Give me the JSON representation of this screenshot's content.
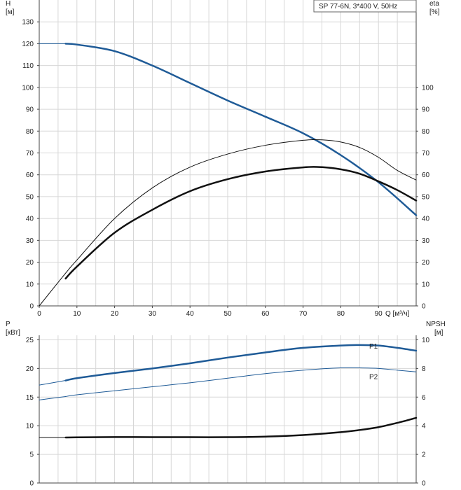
{
  "info_box": "SP 77-6N, 3*400 V, 50Hz",
  "colors": {
    "blue": "#1f5b97",
    "black": "#111111",
    "grid": "#d7d7d7"
  },
  "chart_data": [
    {
      "type": "line",
      "title": "",
      "ylabel_left": [
        "H",
        "[м]"
      ],
      "ylabel_right": [
        "eta",
        "[%]"
      ],
      "xlabel": "Q [м³/ч]",
      "xlim": [
        0,
        100
      ],
      "ylim": [
        0,
        140
      ],
      "x_ticks": [
        0,
        10,
        20,
        30,
        40,
        50,
        60,
        70,
        80,
        90
      ],
      "y_left_ticks": [
        0,
        10,
        20,
        30,
        40,
        50,
        60,
        70,
        80,
        90,
        100,
        110,
        120,
        130
      ],
      "y_right_ticks": [
        0,
        10,
        20,
        30,
        40,
        50,
        60,
        70,
        80,
        90,
        100
      ],
      "grid": true,
      "series": [
        {
          "key": "H_ext",
          "axis": "left",
          "color": "#1f5b97",
          "width": 1,
          "x": [
            0,
            7
          ],
          "y": [
            120,
            120
          ]
        },
        {
          "key": "H",
          "axis": "left",
          "color": "#1f5b97",
          "width": 2.5,
          "x": [
            7,
            10,
            20,
            30,
            40,
            50,
            60,
            70,
            80,
            90,
            100
          ],
          "y": [
            120,
            119.6,
            116.6,
            110,
            102,
            94,
            86.6,
            79,
            69,
            56.6,
            41.5
          ]
        },
        {
          "key": "eta_thin",
          "axis": "right",
          "color": "#111111",
          "width": 1,
          "x": [
            0,
            7,
            10,
            20,
            30,
            40,
            50,
            60,
            70,
            75,
            80,
            85,
            90,
            95,
            100
          ],
          "y": [
            0,
            15,
            21,
            40,
            54,
            63.5,
            69.5,
            73.5,
            75.8,
            76,
            75,
            72.5,
            68,
            62,
            57.6
          ]
        },
        {
          "key": "eta_thick",
          "axis": "right",
          "color": "#111111",
          "width": 2.5,
          "x": [
            7,
            10,
            20,
            30,
            40,
            50,
            60,
            70,
            75,
            80,
            85,
            90,
            95,
            100
          ],
          "y": [
            12.5,
            18,
            33.5,
            44,
            52.5,
            58,
            61.5,
            63.4,
            63.5,
            62.5,
            60.5,
            57,
            53,
            48.2
          ]
        }
      ]
    },
    {
      "type": "line",
      "title": "",
      "ylabel_left": [
        "P",
        "[кВт]"
      ],
      "ylabel_right": [
        "NPSH",
        "[м]"
      ],
      "xlim": [
        0,
        100
      ],
      "ylim": [
        0,
        27.5
      ],
      "y_left_ticks": [
        0,
        5,
        10,
        15,
        20,
        25
      ],
      "y_right_ticks": [
        0,
        2,
        4,
        6,
        8,
        10
      ],
      "grid": true,
      "series": [
        {
          "key": "P1_ext",
          "axis": "left",
          "color": "#1f5b97",
          "width": 1,
          "x": [
            0,
            7
          ],
          "y": [
            17.1,
            17.9
          ]
        },
        {
          "key": "P1",
          "name": "P1",
          "axis": "left",
          "color": "#1f5b97",
          "width": 2.5,
          "x": [
            7,
            10,
            20,
            30,
            40,
            50,
            60,
            70,
            80,
            85,
            90,
            95,
            100
          ],
          "y": [
            17.9,
            18.3,
            19.2,
            20,
            20.9,
            21.9,
            22.8,
            23.6,
            24,
            24.1,
            24,
            23.6,
            23.1
          ]
        },
        {
          "key": "P2_ext",
          "axis": "left",
          "color": "#1f5b97",
          "width": 1,
          "x": [
            0,
            7
          ],
          "y": [
            14.5,
            15.1
          ]
        },
        {
          "key": "P2",
          "name": "P2",
          "axis": "left",
          "color": "#1f5b97",
          "width": 1,
          "x": [
            7,
            10,
            20,
            30,
            40,
            50,
            60,
            70,
            80,
            85,
            90,
            95,
            100
          ],
          "y": [
            15.1,
            15.4,
            16.1,
            16.8,
            17.5,
            18.3,
            19.1,
            19.7,
            20.1,
            20.1,
            20,
            19.7,
            19.4
          ]
        },
        {
          "key": "NPSH_ext",
          "axis": "right",
          "color": "#111111",
          "width": 1,
          "x": [
            0,
            7
          ],
          "y": [
            3.18,
            3.18
          ]
        },
        {
          "key": "NPSH",
          "axis": "right",
          "color": "#111111",
          "width": 2.5,
          "x": [
            7,
            10,
            20,
            30,
            40,
            50,
            60,
            70,
            80,
            85,
            90,
            95,
            100
          ],
          "y": [
            3.18,
            3.19,
            3.21,
            3.2,
            3.2,
            3.2,
            3.24,
            3.35,
            3.55,
            3.7,
            3.9,
            4.2,
            4.55
          ]
        }
      ]
    }
  ]
}
